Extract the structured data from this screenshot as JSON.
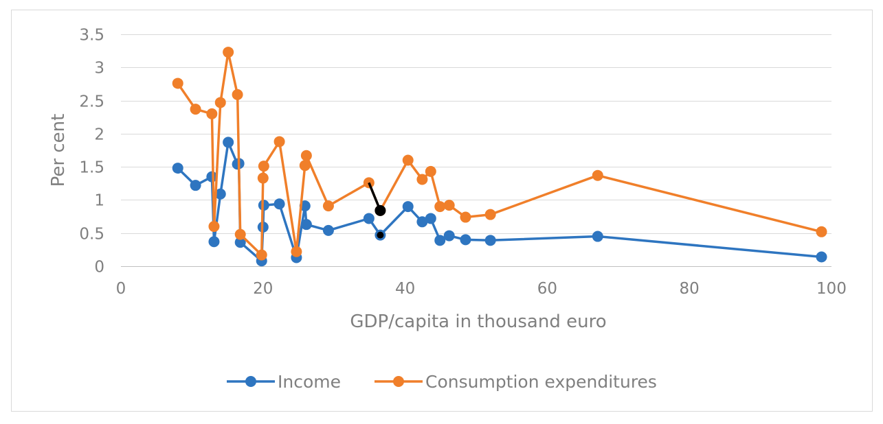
{
  "chart_data": {
    "type": "line",
    "title": "",
    "xlabel": "GDP/capita in thousand euro",
    "ylabel": "Per cent",
    "xlim": [
      0,
      100
    ],
    "ylim": [
      0,
      3.5
    ],
    "xticks": [
      0,
      20,
      40,
      60,
      80,
      100
    ],
    "yticks": [
      0,
      0.5,
      1,
      1.5,
      2,
      2.5,
      3,
      3.5
    ],
    "ytick_labels": [
      "0",
      "0.5",
      "1",
      "1.5",
      "2",
      "2.5",
      "3",
      "3.5"
    ],
    "grid": true,
    "legend_position": "bottom",
    "series": [
      {
        "name": "Income",
        "color": "#2e75c0",
        "points": [
          [
            8,
            1.48
          ],
          [
            10.5,
            1.22
          ],
          [
            12.8,
            1.35
          ],
          [
            13.1,
            0.37
          ],
          [
            14,
            1.09
          ],
          [
            15.1,
            1.87
          ],
          [
            16.4,
            1.54
          ],
          [
            16.6,
            1.55
          ],
          [
            16.8,
            0.36
          ],
          [
            19.8,
            0.08
          ],
          [
            20,
            0.59
          ],
          [
            20.1,
            0.92
          ],
          [
            22.3,
            0.94
          ],
          [
            24.7,
            0.13
          ],
          [
            25.9,
            0.91
          ],
          [
            26.1,
            0.63
          ],
          [
            29.2,
            0.54
          ],
          [
            34.9,
            0.72
          ],
          [
            36.5,
            0.47
          ],
          [
            40.4,
            0.9
          ],
          [
            42.4,
            0.67
          ],
          [
            43.6,
            0.72
          ],
          [
            44.9,
            0.39
          ],
          [
            46.2,
            0.46
          ],
          [
            48.5,
            0.4
          ],
          [
            52,
            0.39
          ],
          [
            67.1,
            0.45
          ],
          [
            98.6,
            0.14
          ]
        ]
      },
      {
        "name": "Consumption expenditures",
        "color": "#f07f2a",
        "points": [
          [
            8,
            2.76
          ],
          [
            10.5,
            2.37
          ],
          [
            12.8,
            2.3
          ],
          [
            13.1,
            0.6
          ],
          [
            14,
            2.47
          ],
          [
            15.1,
            3.23
          ],
          [
            16.4,
            2.59
          ],
          [
            16.8,
            0.48
          ],
          [
            19.8,
            0.17
          ],
          [
            20,
            1.33
          ],
          [
            20.1,
            1.51
          ],
          [
            22.3,
            1.88
          ],
          [
            24.7,
            0.22
          ],
          [
            25.9,
            1.52
          ],
          [
            26.1,
            1.67
          ],
          [
            29.2,
            0.91
          ],
          [
            34.9,
            1.26
          ],
          [
            36.5,
            0.84
          ],
          [
            40.4,
            1.6
          ],
          [
            42.4,
            1.31
          ],
          [
            43.6,
            1.43
          ],
          [
            44.9,
            0.9
          ],
          [
            46.2,
            0.92
          ],
          [
            48.5,
            0.74
          ],
          [
            52,
            0.78
          ],
          [
            67.1,
            1.37
          ],
          [
            98.6,
            0.52
          ]
        ]
      }
    ],
    "highlight": {
      "color": "#000000",
      "segment": [
        [
          34.9,
          1.26
        ],
        [
          36.5,
          0.84
        ]
      ],
      "points": [
        [
          36.5,
          0.84
        ],
        [
          36.5,
          0.47
        ]
      ]
    }
  }
}
